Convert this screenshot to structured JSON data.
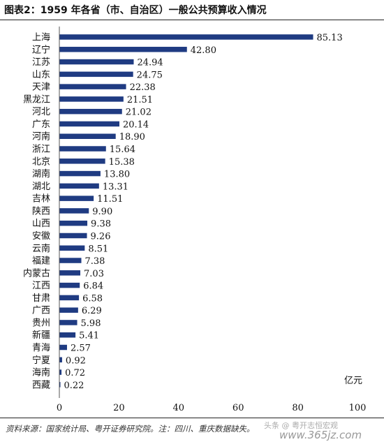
{
  "title": "图表2：1959 年各省（市、自治区）一般公共预算收入情况",
  "source": "资料来源：国家统计局、粤开证券研究院。注：四川、重庆数据缺失。",
  "watermark": "头条 @ 粤开志恒宏观",
  "watermark_url": "www.365jz.com",
  "chart_data": {
    "type": "bar",
    "orientation": "horizontal",
    "categories": [
      "上海",
      "辽宁",
      "江苏",
      "山东",
      "天津",
      "黑龙江",
      "河北",
      "广东",
      "河南",
      "浙江",
      "北京",
      "湖南",
      "湖北",
      "吉林",
      "陕西",
      "山西",
      "安徽",
      "云南",
      "福建",
      "内蒙古",
      "江西",
      "甘肃",
      "广西",
      "贵州",
      "新疆",
      "青海",
      "宁夏",
      "海南",
      "西藏"
    ],
    "values": [
      85.13,
      42.8,
      24.94,
      24.75,
      22.38,
      21.51,
      21.02,
      20.14,
      18.9,
      15.64,
      15.38,
      13.8,
      13.31,
      11.51,
      9.9,
      9.38,
      9.26,
      8.51,
      7.38,
      7.03,
      6.84,
      6.58,
      6.29,
      5.98,
      5.41,
      2.57,
      0.92,
      0.72,
      0.22
    ],
    "value_labels": [
      "85.13",
      "42.80",
      "24.94",
      "24.75",
      "22.38",
      "21.51",
      "21.02",
      "20.14",
      "18.90",
      "15.64",
      "15.38",
      "13.80",
      "13.31",
      "11.51",
      "9.90",
      "9.38",
      "9.26",
      "8.51",
      "7.38",
      "7.03",
      "6.84",
      "6.58",
      "6.29",
      "5.98",
      "5.41",
      "2.57",
      "0.92",
      "0.72",
      "0.22"
    ],
    "xlim": [
      0,
      100
    ],
    "xticks": [
      "0",
      "20",
      "40",
      "60",
      "80",
      "100"
    ],
    "unit_label": "亿元",
    "bar_color": "#1f3b82",
    "grid": false
  }
}
